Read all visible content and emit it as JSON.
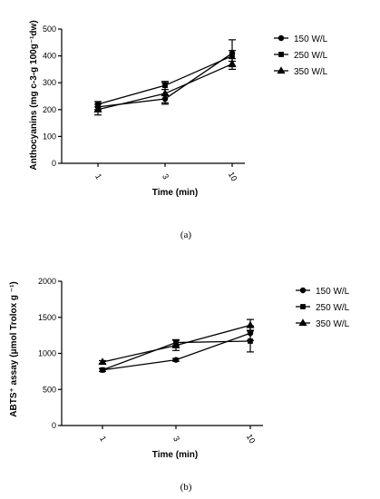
{
  "chart_data": [
    {
      "type": "line",
      "panel_label": "(a)",
      "xlabel": "Time (min)",
      "ylabel": "Anthocyanins (mg c-3-g 100g⁻¹dw)",
      "x": [
        "1",
        "3",
        "10"
      ],
      "ylim": [
        0,
        500
      ],
      "yticks": [
        0,
        100,
        200,
        300,
        400,
        500
      ],
      "grid": false,
      "legend": "right",
      "series": [
        {
          "name": "150 W/L",
          "marker": "circle",
          "values": [
            210,
            240,
            410
          ],
          "errors": [
            10,
            15,
            50
          ]
        },
        {
          "name": "250 W/L",
          "marker": "square",
          "values": [
            220,
            290,
            400
          ],
          "errors": [
            10,
            15,
            20
          ]
        },
        {
          "name": "350 W/L",
          "marker": "triangle",
          "values": [
            200,
            260,
            370
          ],
          "errors": [
            20,
            40,
            20
          ]
        }
      ]
    },
    {
      "type": "line",
      "panel_label": "(b)",
      "xlabel": "Time (min)",
      "ylabel": "ABTS⁺ assay (μmol Trolox g ⁻¹)",
      "x": [
        "1",
        "3",
        "10"
      ],
      "ylim": [
        0,
        2000
      ],
      "yticks": [
        0,
        500,
        1000,
        1500,
        2000
      ],
      "grid": false,
      "legend": "right",
      "series": [
        {
          "name": "150 W/L",
          "marker": "circle",
          "values": [
            770,
            910,
            1280
          ],
          "errors": [
            20,
            20,
            100
          ]
        },
        {
          "name": "250 W/L",
          "marker": "square",
          "values": [
            770,
            1150,
            1170
          ],
          "errors": [
            20,
            40,
            150
          ]
        },
        {
          "name": "350 W/L",
          "marker": "triangle",
          "values": [
            880,
            1110,
            1390
          ],
          "errors": [
            20,
            70,
            80
          ]
        }
      ]
    }
  ]
}
